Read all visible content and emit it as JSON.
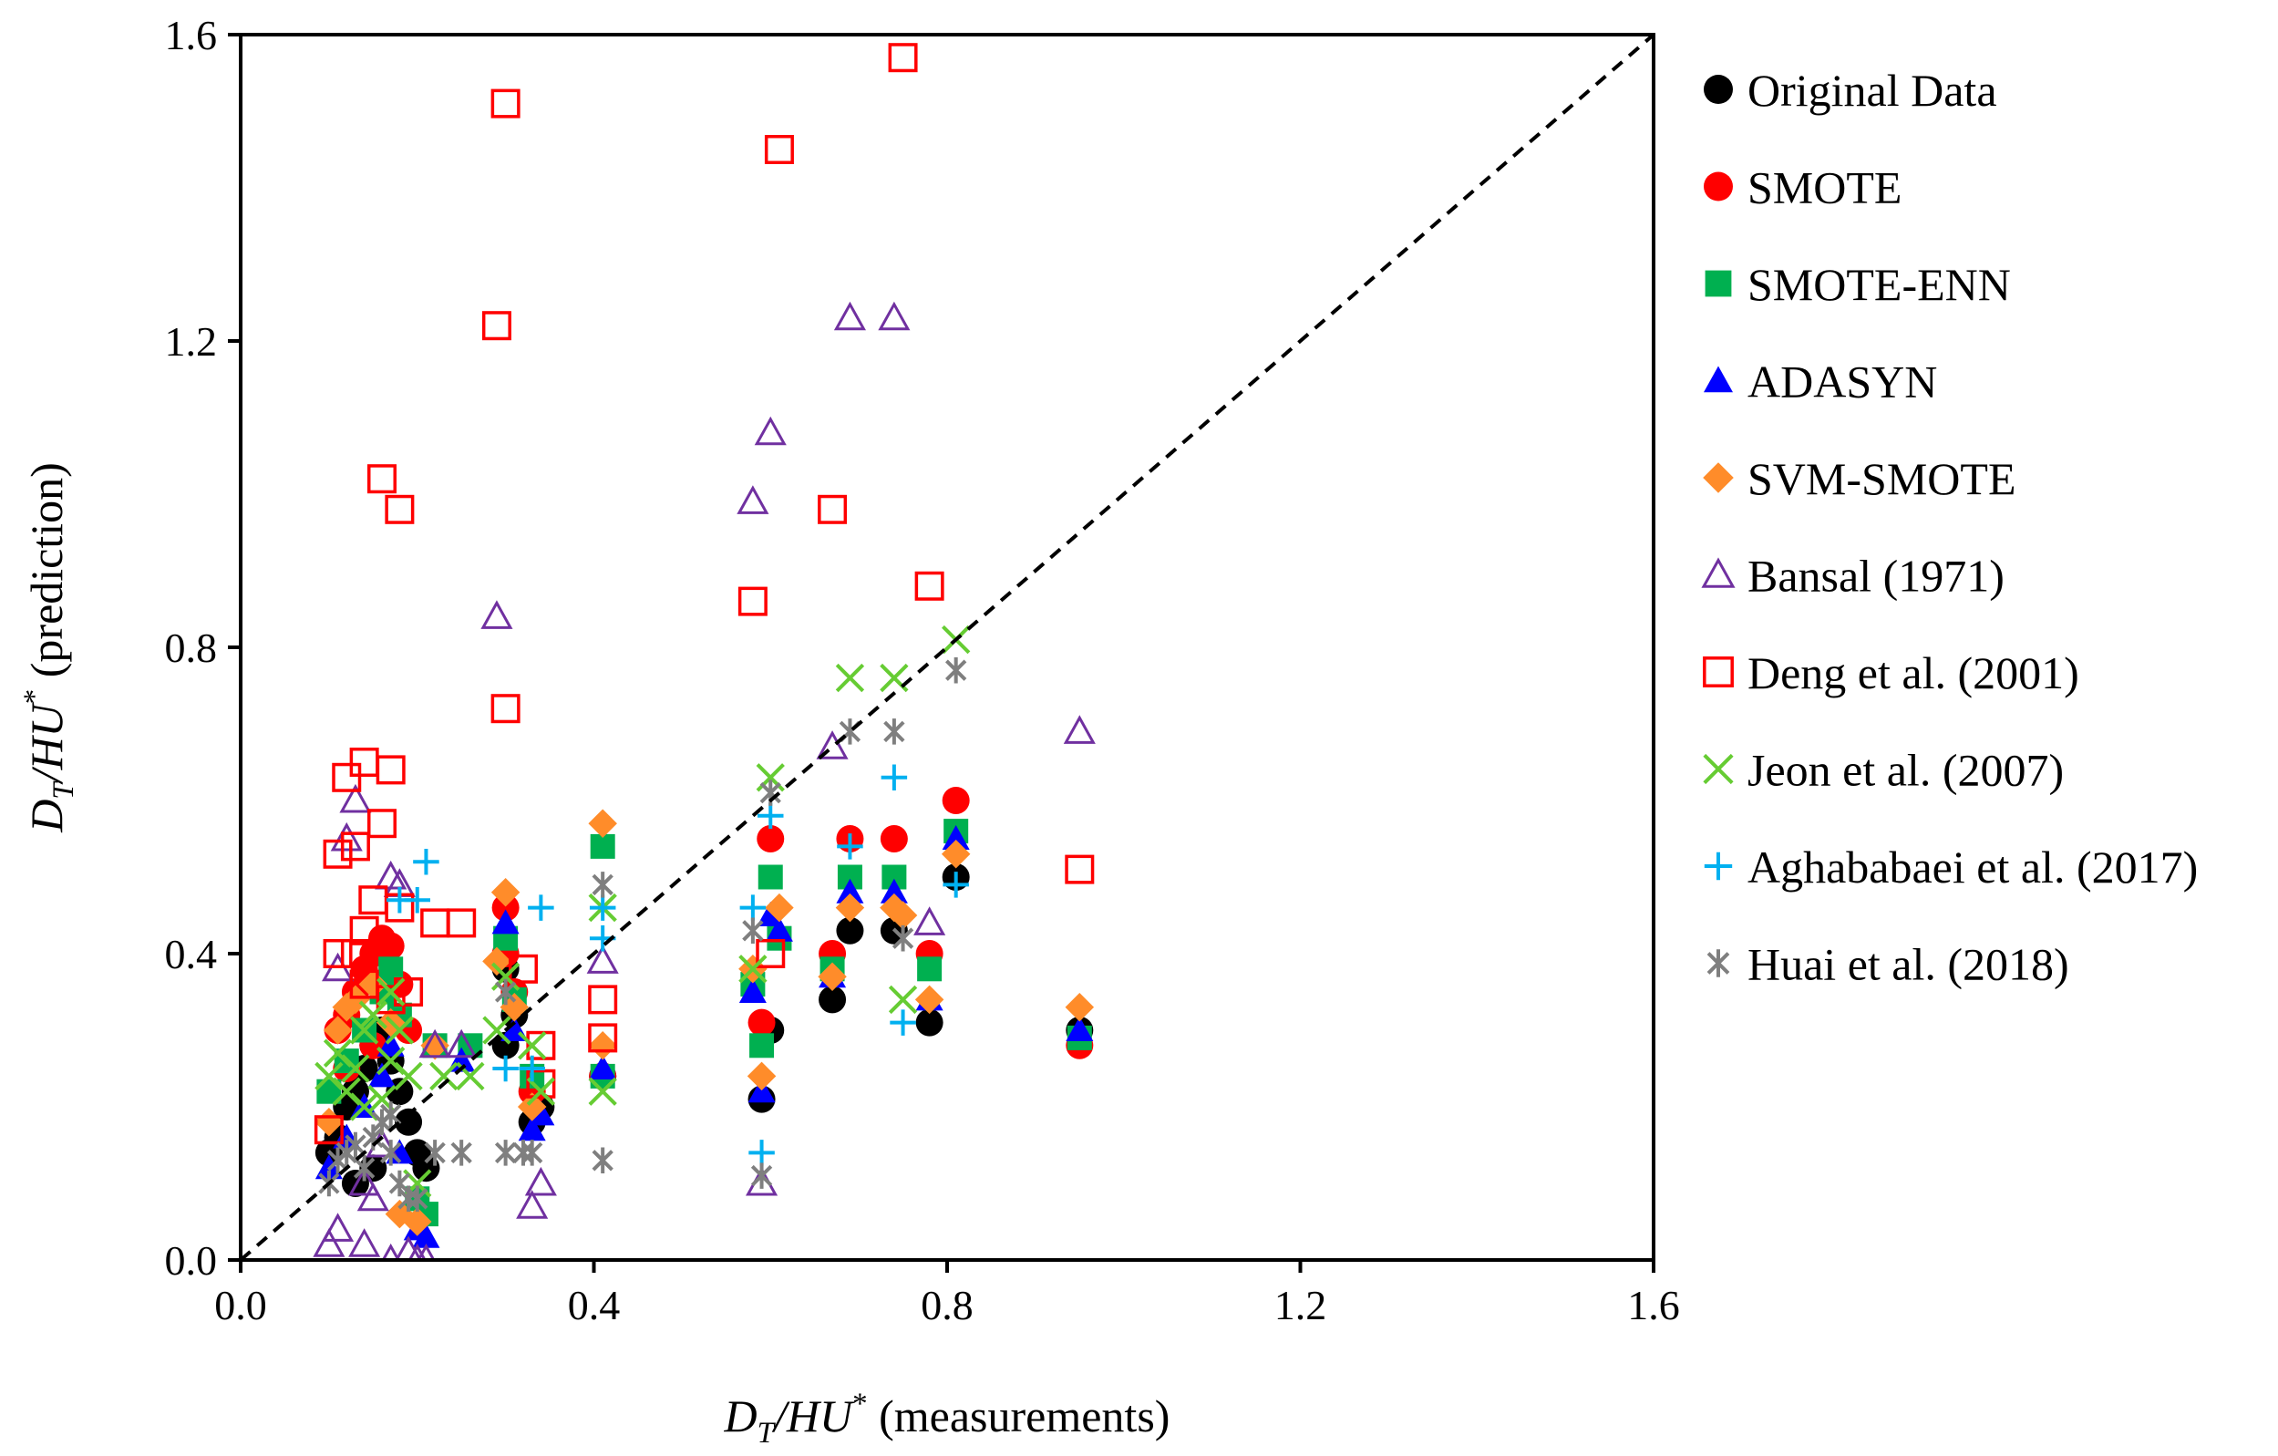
{
  "chart_data": {
    "type": "scatter",
    "xlabel": {
      "var": "D",
      "sub": "T",
      "mid": "/HU",
      "sup": "*",
      "rest": " (measurements)"
    },
    "ylabel": {
      "var": "D",
      "sub": "T",
      "mid": "/HU",
      "sup": "*",
      "rest": " (prediction)"
    },
    "xlim": [
      0,
      1.6
    ],
    "ylim": [
      0,
      1.6
    ],
    "xticks": [
      "0.0",
      "0.4",
      "0.8",
      "1.2",
      "1.6"
    ],
    "yticks": [
      "0.0",
      "0.4",
      "0.8",
      "1.2",
      "1.6"
    ],
    "grid": false,
    "legend_position": "right",
    "reference_line": {
      "style": "dashed",
      "from": [
        0,
        0
      ],
      "to": [
        1.6,
        1.6
      ]
    },
    "series": [
      {
        "name": "Original Data",
        "marker": "circle-filled",
        "color": "#000000",
        "points": [
          [
            0.1,
            0.14
          ],
          [
            0.11,
            0.16
          ],
          [
            0.12,
            0.2
          ],
          [
            0.13,
            0.22
          ],
          [
            0.14,
            0.25
          ],
          [
            0.15,
            0.28
          ],
          [
            0.16,
            0.3
          ],
          [
            0.17,
            0.26
          ],
          [
            0.18,
            0.22
          ],
          [
            0.19,
            0.18
          ],
          [
            0.2,
            0.14
          ],
          [
            0.21,
            0.12
          ],
          [
            0.13,
            0.1
          ],
          [
            0.15,
            0.12
          ],
          [
            0.3,
            0.28
          ],
          [
            0.3,
            0.38
          ],
          [
            0.31,
            0.32
          ],
          [
            0.33,
            0.18
          ],
          [
            0.34,
            0.2
          ],
          [
            0.41,
            0.24
          ],
          [
            0.59,
            0.21
          ],
          [
            0.6,
            0.3
          ],
          [
            0.67,
            0.34
          ],
          [
            0.69,
            0.43
          ],
          [
            0.74,
            0.43
          ],
          [
            0.78,
            0.31
          ],
          [
            0.81,
            0.5
          ],
          [
            0.95,
            0.3
          ]
        ]
      },
      {
        "name": "SMOTE",
        "marker": "circle-filled",
        "color": "#ff0000",
        "points": [
          [
            0.11,
            0.3
          ],
          [
            0.12,
            0.32
          ],
          [
            0.13,
            0.35
          ],
          [
            0.14,
            0.38
          ],
          [
            0.15,
            0.4
          ],
          [
            0.16,
            0.42
          ],
          [
            0.17,
            0.41
          ],
          [
            0.18,
            0.36
          ],
          [
            0.19,
            0.3
          ],
          [
            0.12,
            0.25
          ],
          [
            0.15,
            0.28
          ],
          [
            0.3,
            0.46
          ],
          [
            0.3,
            0.4
          ],
          [
            0.31,
            0.35
          ],
          [
            0.33,
            0.22
          ],
          [
            0.41,
            0.24
          ],
          [
            0.59,
            0.31
          ],
          [
            0.6,
            0.55
          ],
          [
            0.67,
            0.4
          ],
          [
            0.69,
            0.55
          ],
          [
            0.74,
            0.55
          ],
          [
            0.78,
            0.4
          ],
          [
            0.81,
            0.6
          ],
          [
            0.95,
            0.28
          ]
        ]
      },
      {
        "name": "SMOTE-ENN",
        "marker": "square-filled",
        "color": "#00b050",
        "points": [
          [
            0.1,
            0.22
          ],
          [
            0.12,
            0.26
          ],
          [
            0.14,
            0.3
          ],
          [
            0.16,
            0.35
          ],
          [
            0.17,
            0.38
          ],
          [
            0.18,
            0.32
          ],
          [
            0.2,
            0.08
          ],
          [
            0.21,
            0.06
          ],
          [
            0.22,
            0.28
          ],
          [
            0.26,
            0.28
          ],
          [
            0.3,
            0.42
          ],
          [
            0.31,
            0.34
          ],
          [
            0.33,
            0.24
          ],
          [
            0.41,
            0.54
          ],
          [
            0.41,
            0.24
          ],
          [
            0.58,
            0.36
          ],
          [
            0.59,
            0.28
          ],
          [
            0.6,
            0.5
          ],
          [
            0.61,
            0.42
          ],
          [
            0.67,
            0.38
          ],
          [
            0.69,
            0.5
          ],
          [
            0.74,
            0.5
          ],
          [
            0.78,
            0.38
          ],
          [
            0.81,
            0.56
          ],
          [
            0.95,
            0.29
          ]
        ]
      },
      {
        "name": "ADASYN",
        "marker": "triangle-filled",
        "color": "#0000ff",
        "points": [
          [
            0.1,
            0.12
          ],
          [
            0.12,
            0.16
          ],
          [
            0.14,
            0.2
          ],
          [
            0.16,
            0.24
          ],
          [
            0.17,
            0.28
          ],
          [
            0.18,
            0.14
          ],
          [
            0.2,
            0.04
          ],
          [
            0.21,
            0.03
          ],
          [
            0.25,
            0.26
          ],
          [
            0.3,
            0.44
          ],
          [
            0.31,
            0.3
          ],
          [
            0.33,
            0.17
          ],
          [
            0.34,
            0.19
          ],
          [
            0.41,
            0.25
          ],
          [
            0.58,
            0.35
          ],
          [
            0.59,
            0.22
          ],
          [
            0.6,
            0.45
          ],
          [
            0.61,
            0.43
          ],
          [
            0.67,
            0.37
          ],
          [
            0.69,
            0.48
          ],
          [
            0.74,
            0.48
          ],
          [
            0.78,
            0.34
          ],
          [
            0.81,
            0.55
          ],
          [
            0.95,
            0.3
          ]
        ]
      },
      {
        "name": "SVM-SMOTE",
        "marker": "diamond-filled",
        "color": "#ff8c2a",
        "points": [
          [
            0.1,
            0.18
          ],
          [
            0.11,
            0.3
          ],
          [
            0.12,
            0.33
          ],
          [
            0.13,
            0.34
          ],
          [
            0.15,
            0.36
          ],
          [
            0.17,
            0.31
          ],
          [
            0.18,
            0.06
          ],
          [
            0.2,
            0.05
          ],
          [
            0.22,
            0.28
          ],
          [
            0.29,
            0.39
          ],
          [
            0.3,
            0.48
          ],
          [
            0.31,
            0.33
          ],
          [
            0.33,
            0.2
          ],
          [
            0.41,
            0.57
          ],
          [
            0.41,
            0.28
          ],
          [
            0.58,
            0.38
          ],
          [
            0.59,
            0.24
          ],
          [
            0.61,
            0.46
          ],
          [
            0.67,
            0.37
          ],
          [
            0.69,
            0.46
          ],
          [
            0.74,
            0.46
          ],
          [
            0.75,
            0.45
          ],
          [
            0.78,
            0.34
          ],
          [
            0.81,
            0.53
          ],
          [
            0.95,
            0.33
          ]
        ]
      },
      {
        "name": "Bansal (1971)",
        "marker": "triangle-open",
        "color": "#7030a0",
        "points": [
          [
            0.1,
            0.02
          ],
          [
            0.11,
            0.04
          ],
          [
            0.11,
            0.38
          ],
          [
            0.12,
            0.55
          ],
          [
            0.13,
            0.6
          ],
          [
            0.14,
            0.1
          ],
          [
            0.15,
            0.08
          ],
          [
            0.14,
            0.02
          ],
          [
            0.16,
            0.15
          ],
          [
            0.17,
            0.5
          ],
          [
            0.18,
            0.49
          ],
          [
            0.17,
            0.0
          ],
          [
            0.19,
            0.01
          ],
          [
            0.2,
            0.0
          ],
          [
            0.21,
            0.0
          ],
          [
            0.22,
            0.28
          ],
          [
            0.25,
            0.28
          ],
          [
            0.29,
            0.84
          ],
          [
            0.33,
            0.07
          ],
          [
            0.34,
            0.1
          ],
          [
            0.41,
            0.39
          ],
          [
            0.58,
            0.99
          ],
          [
            0.59,
            0.1
          ],
          [
            0.6,
            1.08
          ],
          [
            0.67,
            0.67
          ],
          [
            0.69,
            1.23
          ],
          [
            0.74,
            1.23
          ],
          [
            0.78,
            0.44
          ],
          [
            0.95,
            0.69
          ]
        ]
      },
      {
        "name": "Deng et al. (2001)",
        "marker": "square-open",
        "color": "#ff0000",
        "points": [
          [
            0.1,
            0.17
          ],
          [
            0.11,
            0.4
          ],
          [
            0.11,
            0.53
          ],
          [
            0.12,
            0.63
          ],
          [
            0.13,
            0.54
          ],
          [
            0.13,
            0.4
          ],
          [
            0.14,
            0.65
          ],
          [
            0.14,
            0.36
          ],
          [
            0.14,
            0.43
          ],
          [
            0.15,
            0.47
          ],
          [
            0.16,
            0.57
          ],
          [
            0.16,
            1.02
          ],
          [
            0.17,
            0.64
          ],
          [
            0.17,
            0.34
          ],
          [
            0.18,
            0.98
          ],
          [
            0.18,
            0.46
          ],
          [
            0.19,
            0.35
          ],
          [
            0.22,
            0.44
          ],
          [
            0.25,
            0.44
          ],
          [
            0.29,
            1.22
          ],
          [
            0.3,
            1.51
          ],
          [
            0.3,
            0.72
          ],
          [
            0.32,
            0.38
          ],
          [
            0.34,
            0.28
          ],
          [
            0.34,
            0.23
          ],
          [
            0.41,
            0.34
          ],
          [
            0.41,
            0.29
          ],
          [
            0.58,
            0.86
          ],
          [
            0.6,
            0.4
          ],
          [
            0.61,
            1.45
          ],
          [
            0.67,
            0.98
          ],
          [
            0.75,
            1.57
          ],
          [
            0.78,
            0.88
          ],
          [
            0.95,
            0.51
          ]
        ]
      },
      {
        "name": "Jeon et al. (2007)",
        "marker": "x",
        "color": "#66cc33",
        "points": [
          [
            0.1,
            0.24
          ],
          [
            0.11,
            0.27
          ],
          [
            0.12,
            0.22
          ],
          [
            0.13,
            0.25
          ],
          [
            0.14,
            0.2
          ],
          [
            0.14,
            0.3
          ],
          [
            0.15,
            0.32
          ],
          [
            0.16,
            0.21
          ],
          [
            0.17,
            0.26
          ],
          [
            0.17,
            0.35
          ],
          [
            0.18,
            0.3
          ],
          [
            0.19,
            0.24
          ],
          [
            0.2,
            0.1
          ],
          [
            0.23,
            0.24
          ],
          [
            0.26,
            0.24
          ],
          [
            0.29,
            0.3
          ],
          [
            0.3,
            0.37
          ],
          [
            0.33,
            0.28
          ],
          [
            0.34,
            0.22
          ],
          [
            0.41,
            0.22
          ],
          [
            0.41,
            0.46
          ],
          [
            0.58,
            0.38
          ],
          [
            0.6,
            0.63
          ],
          [
            0.69,
            0.76
          ],
          [
            0.74,
            0.76
          ],
          [
            0.75,
            0.34
          ],
          [
            0.81,
            0.81
          ]
        ]
      },
      {
        "name": "Aghababaei et al. (2017)",
        "marker": "plus",
        "color": "#00b0f0",
        "points": [
          [
            0.18,
            0.47
          ],
          [
            0.2,
            0.47
          ],
          [
            0.21,
            0.52
          ],
          [
            0.3,
            0.25
          ],
          [
            0.33,
            0.25
          ],
          [
            0.34,
            0.46
          ],
          [
            0.41,
            0.42
          ],
          [
            0.41,
            0.46
          ],
          [
            0.58,
            0.46
          ],
          [
            0.59,
            0.14
          ],
          [
            0.6,
            0.58
          ],
          [
            0.69,
            0.54
          ],
          [
            0.74,
            0.63
          ],
          [
            0.75,
            0.31
          ],
          [
            0.81,
            0.49
          ]
        ]
      },
      {
        "name": "Huai et al. (2018)",
        "marker": "asterisk",
        "color": "#7f7f7f",
        "points": [
          [
            0.1,
            0.1
          ],
          [
            0.11,
            0.13
          ],
          [
            0.12,
            0.14
          ],
          [
            0.13,
            0.15
          ],
          [
            0.14,
            0.12
          ],
          [
            0.15,
            0.16
          ],
          [
            0.16,
            0.18
          ],
          [
            0.17,
            0.14
          ],
          [
            0.17,
            0.19
          ],
          [
            0.18,
            0.1
          ],
          [
            0.19,
            0.08
          ],
          [
            0.2,
            0.08
          ],
          [
            0.22,
            0.14
          ],
          [
            0.25,
            0.14
          ],
          [
            0.3,
            0.14
          ],
          [
            0.3,
            0.35
          ],
          [
            0.32,
            0.14
          ],
          [
            0.33,
            0.14
          ],
          [
            0.41,
            0.13
          ],
          [
            0.41,
            0.49
          ],
          [
            0.58,
            0.43
          ],
          [
            0.59,
            0.11
          ],
          [
            0.6,
            0.61
          ],
          [
            0.69,
            0.69
          ],
          [
            0.74,
            0.69
          ],
          [
            0.75,
            0.42
          ],
          [
            0.81,
            0.77
          ]
        ]
      }
    ]
  }
}
